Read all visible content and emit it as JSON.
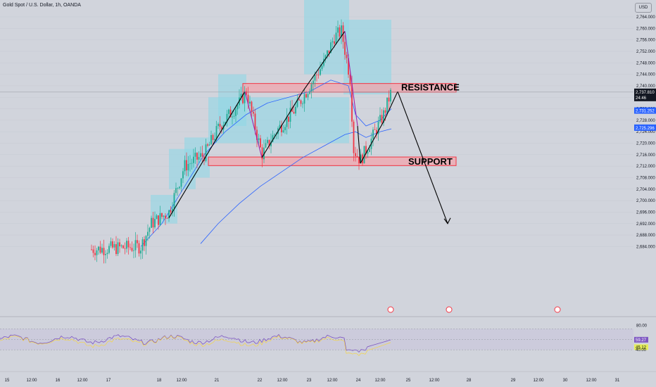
{
  "header": {
    "symbol_title": "Gold Spot / U.S. Dollar, 1h, OANDA",
    "currency_button": "USD"
  },
  "chart_data": {
    "type": "candlestick",
    "price_axis": {
      "ticks": [
        2764,
        2760,
        2756,
        2752,
        2748,
        2744,
        2740,
        2736,
        2732,
        2728,
        2724,
        2720,
        2716,
        2712,
        2708,
        2704,
        2700,
        2696,
        2692,
        2688,
        2684
      ],
      "labels": [
        "2,764.000",
        "2,760.000",
        "2,756.000",
        "2,752.000",
        "2,748.000",
        "2,744.000",
        "2,740.000",
        "2,736.000",
        "2,732.000",
        "2,728.000",
        "2,724.000",
        "2,720.000",
        "2,716.000",
        "2,712.000",
        "2,708.000",
        "2,704.000",
        "2,700.000",
        "2,696.000",
        "2,692.000",
        "2,688.000",
        "2,684.000"
      ]
    },
    "time_axis": {
      "labels": [
        "15",
        "12:00",
        "16",
        "12:00",
        "17",
        "18",
        "12:00",
        "21",
        "22",
        "12:00",
        "23",
        "12:00",
        "24",
        "12:00",
        "25",
        "12:00",
        "28",
        "29",
        "12:00",
        "30",
        "12:00",
        "31"
      ]
    },
    "badges": [
      {
        "price": 2737.81,
        "label": "2,737.810",
        "sub": "24:46",
        "color": "#131722"
      },
      {
        "price": 2731.252,
        "label": "2,731.252",
        "color": "#2962ff"
      },
      {
        "price": 2725.296,
        "label": "2,725.296",
        "color": "#2962ff"
      }
    ],
    "annotations": [
      {
        "text": "RESISTANCE",
        "kind": "zone",
        "price_low": 2737.8,
        "price_high": 2740.8
      },
      {
        "text": "SUPPORT",
        "kind": "zone",
        "price_low": 2712.2,
        "price_high": 2715.2
      }
    ],
    "rsi": {
      "levels": [
        80,
        60,
        40
      ],
      "value_labels": [
        "59.27",
        "45.12",
        "40.00"
      ],
      "top_label": "80.00"
    },
    "colors": {
      "up": "#22ab94",
      "down": "#f23645",
      "zone": "#f23645",
      "box": "#8fd7e6",
      "ma": "#2962ff",
      "rsi_band": "#c8c4dc",
      "rsi_line": "#7e57c2"
    }
  }
}
